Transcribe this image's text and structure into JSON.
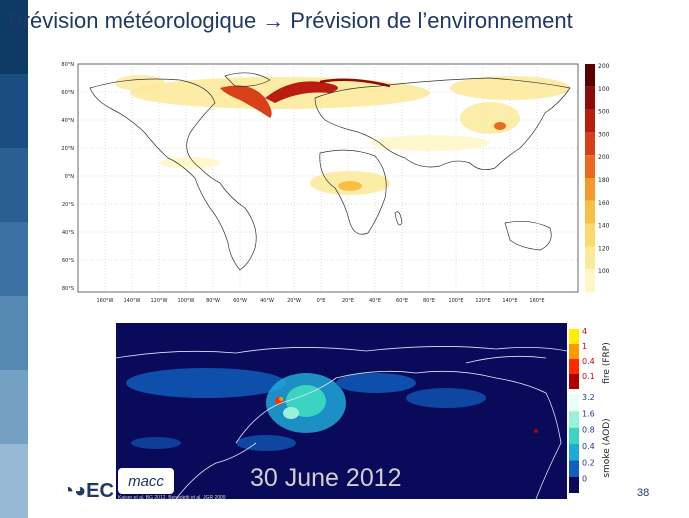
{
  "slide": {
    "title_left": "Prévision météorologique",
    "arrow": "→",
    "title_right": "Prévision de l’environnement",
    "slide_number": "38",
    "logo_text": "EC"
  },
  "map1": {
    "lat_labels": [
      "80°N",
      "60°N",
      "40°N",
      "20°N",
      "0°N",
      "20°S",
      "40°S",
      "60°S",
      "80°S"
    ],
    "lon_labels": [
      "160°W",
      "140°W",
      "120°W",
      "100°W",
      "80°W",
      "60°W",
      "40°W",
      "20°W",
      "0°E",
      "20°E",
      "40°E",
      "60°E",
      "80°E",
      "100°E",
      "120°E",
      "140°E",
      "160°E"
    ],
    "colorbar_labels": [
      "2000",
      "1000",
      "500",
      "300",
      "200",
      "180",
      "160",
      "140",
      "120",
      "100"
    ],
    "colorbar_colors": [
      "#5a0000",
      "#8b0a0a",
      "#b81d0f",
      "#d8401a",
      "#ec6a1c",
      "#f49a2a",
      "#f8bf42",
      "#fbd96a",
      "#fde996",
      "#fff6c8"
    ]
  },
  "map2": {
    "date_label": "30 June 2012",
    "logo_label": "macc",
    "credit_text": "Kaiser et al. BG 2012, Benedetti et al. JGR 2009",
    "fire_title": "fire (FRP)",
    "fire_ticks": [
      "4",
      "1",
      "0.4",
      "0.1"
    ],
    "fire_colors": [
      "#ffee00",
      "#ff9900",
      "#ff2a00",
      "#b00000"
    ],
    "smoke_title": "smoke (AOD)",
    "smoke_ticks": [
      "3.2",
      "1.6",
      "0.8",
      "0.4",
      "0.2",
      "0"
    ],
    "smoke_colors": [
      "#e8fff8",
      "#9af2d6",
      "#3ad4c0",
      "#20a8d8",
      "#1060c0",
      "#0a0a5a"
    ]
  }
}
